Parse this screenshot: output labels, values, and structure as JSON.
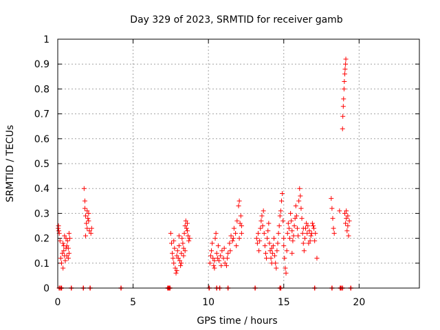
{
  "chart_data": {
    "type": "scatter",
    "title": "Day 329 of 2023, SRMTID for receiver gamb",
    "xlabel": "GPS time / hours",
    "ylabel": "SRMTID / TECUs",
    "xlim": [
      0,
      24
    ],
    "ylim": [
      0,
      1
    ],
    "grid": true,
    "marker": "+",
    "color": "#ff0000",
    "x_ticks": [
      0,
      5,
      10,
      15,
      20
    ],
    "x_tick_labels": [
      "0",
      "5",
      "10",
      "15",
      "20"
    ],
    "y_ticks": [
      0,
      0.1,
      0.2,
      0.3,
      0.4,
      0.5,
      0.6,
      0.7,
      0.8,
      0.9,
      1
    ],
    "y_tick_labels": [
      "0",
      "0.1",
      "0.2",
      "0.3",
      "0.4",
      "0.5",
      "0.6",
      "0.7",
      "0.8",
      "0.9",
      "1"
    ],
    "series": [
      {
        "points": [
          [
            0.03,
            0.24
          ],
          [
            0.05,
            0.25
          ],
          [
            0.07,
            0.23
          ],
          [
            0.1,
            0.22
          ],
          [
            0.15,
            0.19
          ],
          [
            0.2,
            0.12
          ],
          [
            0.25,
            0.1
          ],
          [
            0.3,
            0.14
          ],
          [
            0.35,
            0.18
          ],
          [
            0.4,
            0.15
          ],
          [
            0.45,
            0.13
          ],
          [
            0.5,
            0.11
          ],
          [
            0.55,
            0.2
          ],
          [
            0.6,
            0.17
          ],
          [
            0.65,
            0.19
          ],
          [
            0.7,
            0.16
          ],
          [
            0.75,
            0.14
          ],
          [
            0.8,
            0.2
          ],
          [
            0.35,
            0.08
          ],
          [
            0.45,
            0.21
          ],
          [
            0.55,
            0.16
          ],
          [
            0.6,
            0.13
          ],
          [
            0.7,
            0.12
          ],
          [
            0.75,
            0.22
          ],
          [
            0.4,
            0.17
          ],
          [
            1.75,
            0.4
          ],
          [
            1.8,
            0.32
          ],
          [
            1.85,
            0.29
          ],
          [
            1.9,
            0.26
          ],
          [
            1.95,
            0.24
          ],
          [
            2.0,
            0.28
          ],
          [
            2.05,
            0.3
          ],
          [
            2.1,
            0.23
          ],
          [
            1.85,
            0.21
          ],
          [
            1.95,
            0.31
          ],
          [
            2.05,
            0.27
          ],
          [
            2.2,
            0.22
          ],
          [
            2.25,
            0.24
          ],
          [
            1.8,
            0.35
          ],
          [
            7.5,
            0.22
          ],
          [
            7.55,
            0.18
          ],
          [
            7.6,
            0.14
          ],
          [
            7.65,
            0.12
          ],
          [
            7.7,
            0.1
          ],
          [
            7.75,
            0.16
          ],
          [
            7.8,
            0.08
          ],
          [
            7.85,
            0.06
          ],
          [
            7.9,
            0.13
          ],
          [
            7.95,
            0.15
          ],
          [
            8.0,
            0.12
          ],
          [
            8.05,
            0.17
          ],
          [
            8.1,
            0.11
          ],
          [
            8.15,
            0.09
          ],
          [
            8.2,
            0.14
          ],
          [
            8.25,
            0.2
          ],
          [
            8.3,
            0.18
          ],
          [
            8.35,
            0.16
          ],
          [
            8.4,
            0.22
          ],
          [
            8.45,
            0.25
          ],
          [
            8.5,
            0.27
          ],
          [
            8.55,
            0.24
          ],
          [
            8.6,
            0.26
          ],
          [
            8.65,
            0.21
          ],
          [
            8.7,
            0.19
          ],
          [
            8.75,
            0.2
          ],
          [
            7.7,
            0.19
          ],
          [
            7.9,
            0.07
          ],
          [
            8.05,
            0.21
          ],
          [
            8.2,
            0.1
          ],
          [
            8.35,
            0.13
          ],
          [
            8.45,
            0.15
          ],
          [
            8.6,
            0.23
          ],
          [
            10.1,
            0.1
          ],
          [
            10.15,
            0.13
          ],
          [
            10.2,
            0.15
          ],
          [
            10.25,
            0.18
          ],
          [
            10.3,
            0.12
          ],
          [
            10.35,
            0.09
          ],
          [
            10.4,
            0.11
          ],
          [
            10.45,
            0.2
          ],
          [
            10.5,
            0.22
          ],
          [
            10.55,
            0.14
          ],
          [
            10.6,
            0.12
          ],
          [
            10.7,
            0.11
          ],
          [
            10.8,
            0.13
          ],
          [
            10.9,
            0.15
          ],
          [
            11.0,
            0.12
          ],
          [
            11.1,
            0.1
          ],
          [
            11.2,
            0.09
          ],
          [
            11.3,
            0.14
          ],
          [
            11.4,
            0.18
          ],
          [
            11.5,
            0.21
          ],
          [
            11.6,
            0.19
          ],
          [
            11.7,
            0.24
          ],
          [
            11.8,
            0.22
          ],
          [
            11.9,
            0.27
          ],
          [
            12.0,
            0.33
          ],
          [
            12.05,
            0.35
          ],
          [
            12.1,
            0.26
          ],
          [
            12.15,
            0.29
          ],
          [
            12.2,
            0.25
          ],
          [
            10.4,
            0.08
          ],
          [
            10.65,
            0.17
          ],
          [
            10.85,
            0.09
          ],
          [
            11.05,
            0.16
          ],
          [
            11.25,
            0.12
          ],
          [
            11.45,
            0.15
          ],
          [
            11.65,
            0.2
          ],
          [
            11.85,
            0.17
          ],
          [
            12.05,
            0.2
          ],
          [
            12.2,
            0.22
          ],
          [
            13.2,
            0.2
          ],
          [
            13.25,
            0.18
          ],
          [
            13.3,
            0.22
          ],
          [
            13.35,
            0.15
          ],
          [
            13.4,
            0.19
          ],
          [
            13.45,
            0.24
          ],
          [
            13.5,
            0.27
          ],
          [
            13.55,
            0.29
          ],
          [
            13.6,
            0.25
          ],
          [
            13.65,
            0.31
          ],
          [
            13.7,
            0.22
          ],
          [
            13.75,
            0.17
          ],
          [
            13.8,
            0.14
          ],
          [
            13.85,
            0.12
          ],
          [
            13.9,
            0.2
          ],
          [
            13.95,
            0.23
          ],
          [
            14.0,
            0.26
          ],
          [
            14.05,
            0.18
          ],
          [
            14.1,
            0.15
          ],
          [
            14.15,
            0.12
          ],
          [
            14.2,
            0.1
          ],
          [
            14.25,
            0.14
          ],
          [
            14.3,
            0.17
          ],
          [
            14.35,
            0.2
          ],
          [
            14.4,
            0.13
          ],
          [
            14.45,
            0.1
          ],
          [
            14.5,
            0.08
          ],
          [
            14.55,
            0.15
          ],
          [
            14.6,
            0.18
          ],
          [
            14.65,
            0.22
          ],
          [
            14.7,
            0.25
          ],
          [
            14.75,
            0.29
          ],
          [
            14.8,
            0.31
          ],
          [
            14.85,
            0.35
          ],
          [
            14.9,
            0.38
          ],
          [
            14.95,
            0.27
          ],
          [
            15.0,
            0.2
          ],
          [
            15.05,
            0.12
          ],
          [
            15.1,
            0.08
          ],
          [
            15.15,
            0.06
          ],
          [
            15.2,
            0.15
          ],
          [
            15.25,
            0.22
          ],
          [
            15.3,
            0.26
          ],
          [
            15.35,
            0.24
          ],
          [
            15.4,
            0.2
          ],
          [
            15.45,
            0.3
          ],
          [
            15.5,
            0.27
          ],
          [
            15.55,
            0.23
          ],
          [
            15.6,
            0.19
          ],
          [
            15.65,
            0.21
          ],
          [
            15.7,
            0.25
          ],
          [
            15.75,
            0.28
          ],
          [
            15.8,
            0.33
          ],
          [
            15.85,
            0.29
          ],
          [
            15.9,
            0.24
          ],
          [
            15.95,
            0.21
          ],
          [
            16.0,
            0.35
          ],
          [
            16.05,
            0.4
          ],
          [
            16.1,
            0.37
          ],
          [
            16.15,
            0.32
          ],
          [
            16.2,
            0.28
          ],
          [
            16.25,
            0.22
          ],
          [
            16.3,
            0.18
          ],
          [
            16.35,
            0.15
          ],
          [
            16.4,
            0.2
          ],
          [
            16.45,
            0.24
          ],
          [
            16.5,
            0.26
          ],
          [
            16.55,
            0.22
          ],
          [
            16.6,
            0.25
          ],
          [
            16.7,
            0.23
          ],
          [
            16.8,
            0.21
          ],
          [
            16.9,
            0.26
          ],
          [
            17.0,
            0.24
          ],
          [
            17.05,
            0.19
          ],
          [
            17.1,
            0.22
          ],
          [
            17.2,
            0.12
          ],
          [
            16.65,
            0.18
          ],
          [
            16.75,
            0.19
          ],
          [
            16.85,
            0.22
          ],
          [
            16.95,
            0.25
          ],
          [
            14.2,
            0.16
          ],
          [
            15.0,
            0.17
          ],
          [
            15.55,
            0.14
          ],
          [
            16.3,
            0.24
          ],
          [
            18.15,
            0.36
          ],
          [
            18.2,
            0.32
          ],
          [
            18.25,
            0.28
          ],
          [
            18.3,
            0.24
          ],
          [
            18.35,
            0.22
          ],
          [
            18.7,
            0.31
          ],
          [
            18.9,
            0.64
          ],
          [
            18.92,
            0.69
          ],
          [
            18.95,
            0.73
          ],
          [
            18.97,
            0.76
          ],
          [
            19.0,
            0.8
          ],
          [
            19.02,
            0.83
          ],
          [
            19.05,
            0.86
          ],
          [
            19.07,
            0.88
          ],
          [
            19.1,
            0.9
          ],
          [
            19.12,
            0.92
          ],
          [
            19.05,
            0.3
          ],
          [
            19.1,
            0.26
          ],
          [
            19.15,
            0.28
          ],
          [
            19.2,
            0.23
          ],
          [
            19.25,
            0.25
          ],
          [
            19.3,
            0.21
          ],
          [
            19.35,
            0.27
          ],
          [
            19.15,
            0.31
          ],
          [
            19.25,
            0.29
          ]
        ]
      }
    ],
    "baseline_points": [
      0.1,
      0.2,
      0.25,
      0.9,
      1.7,
      2.15,
      4.2,
      7.3,
      7.35,
      7.4,
      7.45,
      10.05,
      10.55,
      10.75,
      11.3,
      13.1,
      14.75,
      14.8,
      17.05,
      18.2,
      18.75,
      18.8,
      18.9,
      19.45
    ]
  }
}
